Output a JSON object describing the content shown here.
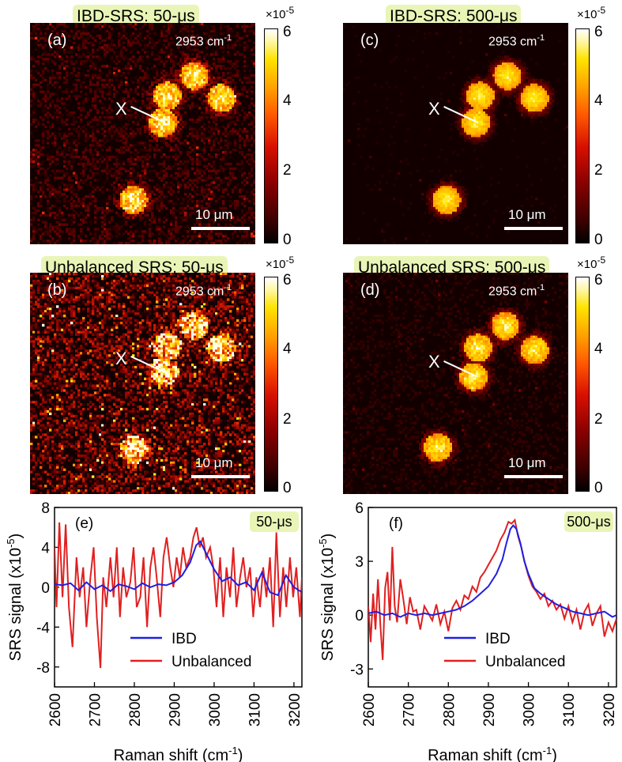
{
  "panels": {
    "a": {
      "label": "(a)",
      "title": "IBD-SRS: 50-μs"
    },
    "b": {
      "label": "(b)",
      "title": "Unbalanced SRS: 50-μs"
    },
    "c": {
      "label": "(c)",
      "title": "IBD-SRS: 500-μs"
    },
    "d": {
      "label": "(d)",
      "title": "Unbalanced SRS: 500-μs"
    }
  },
  "wavenumber": "2953 cm",
  "wavenumber_exp": "-1",
  "scale_bar_label": "10 μm",
  "marker_label": "X",
  "colorbar": {
    "exponent_base": "×10",
    "exponent_power": "-5",
    "ticks": [
      "6",
      "4",
      "2",
      "0"
    ]
  },
  "colors": {
    "ibd": "#1f1fe0",
    "unbalanced": "#e02020",
    "badge_bg": "#e9f5b6"
  },
  "chart_data": [
    {
      "type": "line",
      "panel_label": "(e)",
      "badge": "50-μs",
      "xlabel": "Raman shift (cm",
      "xlabel_exp": "-1",
      "xlabel_end": ")",
      "ylabel": "SRS signal (x10",
      "ylabel_exp": "-5",
      "ylabel_end": ")",
      "xlim": [
        2600,
        3220
      ],
      "ylim": [
        -10,
        8
      ],
      "xticks": [
        2600,
        2700,
        2800,
        2900,
        3000,
        3100,
        3200
      ],
      "yticks": [
        -8,
        -4,
        0,
        4,
        8
      ],
      "ytick_labels": [
        "-8",
        "-4",
        "0",
        "4",
        "8"
      ],
      "series": [
        {
          "name": "IBD",
          "color": "#1f1fe0",
          "x": [
            2600,
            2620,
            2640,
            2660,
            2680,
            2700,
            2720,
            2740,
            2760,
            2780,
            2800,
            2820,
            2840,
            2860,
            2880,
            2900,
            2920,
            2940,
            2955,
            2965,
            2980,
            3000,
            3020,
            3040,
            3060,
            3080,
            3100,
            3120,
            3140,
            3160,
            3180,
            3200,
            3220
          ],
          "y": [
            0.3,
            0.2,
            0.4,
            -0.3,
            0.5,
            -0.2,
            0.2,
            -0.4,
            0.3,
            0.1,
            -0.2,
            0.4,
            0.0,
            0.3,
            0.2,
            0.5,
            1.2,
            2.5,
            4.2,
            4.6,
            3.4,
            1.8,
            0.6,
            1.0,
            0.2,
            0.5,
            -0.3,
            1.5,
            -0.5,
            -0.8,
            1.2,
            0.0,
            -0.5
          ]
        },
        {
          "name": "Unbalanced",
          "color": "#e02020",
          "x": [
            2600,
            2605,
            2612,
            2620,
            2628,
            2636,
            2645,
            2655,
            2663,
            2672,
            2680,
            2690,
            2698,
            2706,
            2715,
            2722,
            2730,
            2740,
            2748,
            2756,
            2764,
            2772,
            2780,
            2790,
            2798,
            2806,
            2815,
            2823,
            2832,
            2840,
            2848,
            2856,
            2865,
            2873,
            2881,
            2890,
            2898,
            2906,
            2914,
            2922,
            2930,
            2940,
            2948,
            2956,
            2964,
            2972,
            2980,
            2990,
            2998,
            3006,
            3015,
            3023,
            3031,
            3040,
            3048,
            3056,
            3065,
            3073,
            3081,
            3090,
            3098,
            3106,
            3115,
            3123,
            3131,
            3140,
            3148,
            3156,
            3165,
            3173,
            3181,
            3190,
            3198,
            3206,
            3215,
            3220
          ],
          "y": [
            4,
            -2,
            6.5,
            -1,
            6.3,
            -2,
            -6,
            3,
            -1,
            2,
            -4,
            1,
            4,
            -3,
            -8.1,
            1,
            -2,
            3,
            -1,
            4,
            -3,
            2,
            -1,
            0.5,
            4,
            -2,
            -1,
            3,
            -4,
            2,
            4,
            1,
            -3,
            3,
            5,
            2,
            0,
            3,
            1,
            4,
            2,
            3,
            5,
            6,
            4,
            5,
            3,
            4,
            2,
            -2,
            3,
            -3,
            2,
            -1,
            4,
            -2,
            1,
            3,
            0,
            2,
            -3,
            1,
            -2,
            2,
            -1,
            3,
            -4,
            5.5,
            -3,
            2,
            -2,
            3,
            -1,
            2,
            -3,
            1
          ]
        }
      ]
    },
    {
      "type": "line",
      "panel_label": "(f)",
      "badge": "500-μs",
      "xlabel": "Raman shift (cm",
      "xlabel_exp": "-1",
      "xlabel_end": ")",
      "ylabel": "SRS signal (x10",
      "ylabel_exp": "-5",
      "ylabel_end": ")",
      "xlim": [
        2600,
        3220
      ],
      "ylim": [
        -4,
        6
      ],
      "xticks": [
        2600,
        2700,
        2800,
        2900,
        3000,
        3100,
        3200
      ],
      "yticks": [
        -3,
        0,
        3,
        6
      ],
      "ytick_labels": [
        "-3",
        "0",
        "3",
        "6"
      ],
      "series": [
        {
          "name": "IBD",
          "color": "#1f1fe0",
          "x": [
            2600,
            2620,
            2640,
            2660,
            2680,
            2700,
            2720,
            2740,
            2760,
            2780,
            2800,
            2820,
            2840,
            2860,
            2880,
            2900,
            2920,
            2935,
            2945,
            2955,
            2962,
            2970,
            2980,
            2990,
            3000,
            3015,
            3030,
            3050,
            3070,
            3090,
            3110,
            3130,
            3150,
            3170,
            3190,
            3210,
            3220
          ],
          "y": [
            0.1,
            0.2,
            0.0,
            0.1,
            -0.1,
            0.1,
            0.0,
            0.1,
            0.0,
            0.1,
            0.2,
            0.3,
            0.5,
            0.8,
            1.2,
            1.6,
            2.3,
            3.1,
            4.0,
            4.8,
            5.0,
            4.8,
            4.0,
            3.0,
            2.3,
            1.5,
            1.2,
            0.9,
            0.6,
            0.4,
            0.2,
            0.1,
            0.0,
            0.1,
            0.2,
            -0.1,
            0.0
          ]
        },
        {
          "name": "Unbalanced",
          "color": "#e02020",
          "x": [
            2600,
            2606,
            2612,
            2618,
            2624,
            2630,
            2636,
            2642,
            2648,
            2654,
            2660,
            2666,
            2672,
            2680,
            2688,
            2696,
            2704,
            2712,
            2720,
            2730,
            2740,
            2750,
            2760,
            2770,
            2780,
            2790,
            2800,
            2810,
            2820,
            2830,
            2840,
            2850,
            2860,
            2870,
            2880,
            2890,
            2900,
            2910,
            2920,
            2930,
            2940,
            2950,
            2958,
            2966,
            2974,
            2982,
            2990,
            3000,
            3010,
            3020,
            3030,
            3040,
            3050,
            3060,
            3070,
            3080,
            3090,
            3100,
            3110,
            3120,
            3130,
            3140,
            3150,
            3160,
            3170,
            3180,
            3190,
            3200,
            3210,
            3220
          ],
          "y": [
            0.5,
            -1.5,
            1.2,
            -0.8,
            2.0,
            -0.5,
            -2.5,
            1.5,
            2.4,
            -0.3,
            3.8,
            0.5,
            -0.4,
            2.0,
            0.8,
            -0.5,
            1.0,
            0.2,
            0.3,
            -0.8,
            0.5,
            0.1,
            -0.3,
            0.6,
            -0.5,
            0.2,
            -0.9,
            0.4,
            0.8,
            0.3,
            1.1,
            0.9,
            1.6,
            1.3,
            2.1,
            2.4,
            2.8,
            3.2,
            3.6,
            4.2,
            4.6,
            5.2,
            5.1,
            5.3,
            4.4,
            3.8,
            3.0,
            2.2,
            1.6,
            1.3,
            0.9,
            1.2,
            0.5,
            0.8,
            0.3,
            0.6,
            -0.2,
            0.5,
            -0.4,
            0.3,
            -0.8,
            0.2,
            0.6,
            -0.6,
            0.1,
            0.5,
            -1.2,
            -0.4,
            -0.9,
            -0.2
          ]
        }
      ]
    }
  ]
}
